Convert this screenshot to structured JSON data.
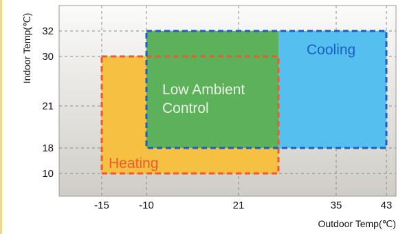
{
  "chart_data": {
    "type": "area",
    "xlabel": "Outdoor Temp(℃)",
    "ylabel": "Indoor Temp(℃)",
    "x_ticks": [
      -15,
      -10,
      21,
      35,
      43
    ],
    "y_ticks": [
      10,
      18,
      21,
      30,
      32
    ],
    "grid": true,
    "regions": [
      {
        "name": "Heating",
        "x_range": [
          -15,
          25
        ],
        "y_range": [
          10,
          30
        ],
        "fill": "#f6c043",
        "border": "#ec5a2d",
        "border_style": "dashed"
      },
      {
        "name": "Low Ambient Control",
        "x_range": [
          -10,
          25
        ],
        "y_range": [
          18,
          32
        ],
        "fill": "#5db15a",
        "border": null
      },
      {
        "name": "Cooling",
        "x_range": [
          25,
          43
        ],
        "y_range": [
          18,
          32
        ],
        "fill": "#55c0ef",
        "border": null
      },
      {
        "name": "Cooling outline",
        "x_range": [
          -10,
          43
        ],
        "y_range": [
          18,
          32
        ],
        "fill": null,
        "border": "#1b5fc4",
        "border_style": "dashed"
      }
    ],
    "labels": [
      {
        "key": "cooling",
        "text": "Cooling",
        "color": "#1b5fc4"
      },
      {
        "key": "low_ambient_1",
        "text": "Low Ambient",
        "color": "#e8f4e4"
      },
      {
        "key": "low_ambient_2",
        "text": "Control",
        "color": "#e8f4e4"
      },
      {
        "key": "heating",
        "text": "Heating",
        "color": "#ec5a2d"
      }
    ]
  }
}
